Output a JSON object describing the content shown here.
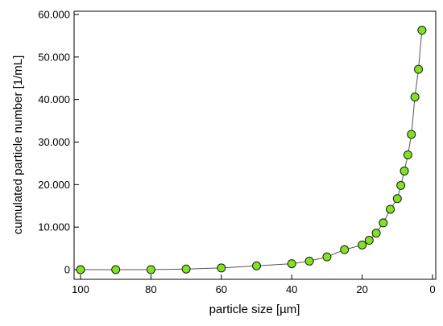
{
  "chart_data": {
    "type": "scatter",
    "title": "",
    "xlabel": "particle size [µm]",
    "ylabel": "cumulated particle number [1/mL]",
    "xlim": [
      100,
      0
    ],
    "ylim": [
      0,
      60000
    ],
    "x_axis_reversed": true,
    "grid": false,
    "legend": "none",
    "connected_line": true,
    "marker_color": "#7FE320",
    "marker_edge_color": "#1a1a1a",
    "line_color": "#555555",
    "x_ticks": [
      {
        "value": 100,
        "label": "100"
      },
      {
        "value": 80,
        "label": "80"
      },
      {
        "value": 60,
        "label": "60"
      },
      {
        "value": 40,
        "label": "40"
      },
      {
        "value": 20,
        "label": "20"
      },
      {
        "value": 0,
        "label": "0"
      }
    ],
    "y_ticks": [
      {
        "value": 0,
        "label": "0"
      },
      {
        "value": 10000,
        "label": "10.000"
      },
      {
        "value": 20000,
        "label": "20.000"
      },
      {
        "value": 30000,
        "label": "30.000"
      },
      {
        "value": 40000,
        "label": "40.000"
      },
      {
        "value": 50000,
        "label": "50.000"
      },
      {
        "value": 60000,
        "label": "60.000"
      }
    ],
    "series": [
      {
        "points": [
          {
            "x": 100,
            "y": 0
          },
          {
            "x": 90,
            "y": 0
          },
          {
            "x": 80,
            "y": 0
          },
          {
            "x": 70,
            "y": 150
          },
          {
            "x": 60,
            "y": 400
          },
          {
            "x": 50,
            "y": 900
          },
          {
            "x": 40,
            "y": 1400
          },
          {
            "x": 35,
            "y": 2000
          },
          {
            "x": 30,
            "y": 3000
          },
          {
            "x": 25,
            "y": 4700
          },
          {
            "x": 20,
            "y": 5800
          },
          {
            "x": 18,
            "y": 6900
          },
          {
            "x": 16,
            "y": 8600
          },
          {
            "x": 14,
            "y": 11000
          },
          {
            "x": 12,
            "y": 14200
          },
          {
            "x": 10,
            "y": 16700
          },
          {
            "x": 9,
            "y": 19800
          },
          {
            "x": 8,
            "y": 23200
          },
          {
            "x": 7,
            "y": 27000
          },
          {
            "x": 6,
            "y": 31800
          },
          {
            "x": 5,
            "y": 40600
          },
          {
            "x": 4,
            "y": 47100
          },
          {
            "x": 3,
            "y": 56300
          }
        ]
      }
    ]
  }
}
